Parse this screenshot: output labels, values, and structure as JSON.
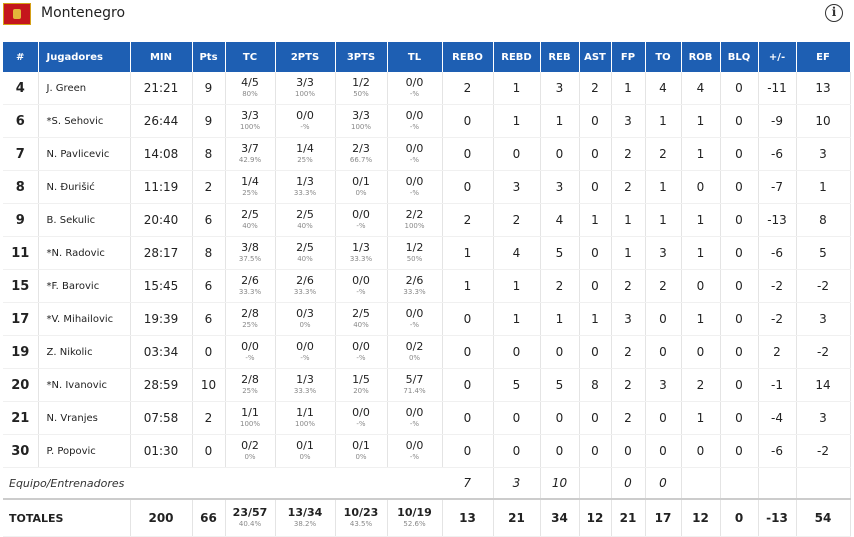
{
  "team": {
    "name": "Montenegro"
  },
  "colors": {
    "header_bg": "#1e5fb3",
    "flag_red": "#c4161c",
    "flag_gold": "#e3b73a"
  },
  "icons": {
    "info": "info-icon",
    "flag": "montenegro-flag-icon"
  },
  "columns": [
    "#",
    "Jugadores",
    "MIN",
    "Pts",
    "TC",
    "2PTS",
    "3PTS",
    "TL",
    "REBO",
    "REBD",
    "REB",
    "AST",
    "FP",
    "TO",
    "ROB",
    "BLQ",
    "+/-",
    "EF"
  ],
  "players": [
    {
      "num": "4",
      "name": "J. Green",
      "min": "21:21",
      "pts": "9",
      "tc": "4/5",
      "tc_pct": "80%",
      "p2": "3/3",
      "p2_pct": "100%",
      "p3": "1/2",
      "p3_pct": "50%",
      "tl": "0/0",
      "tl_pct": "-%",
      "rebo": "2",
      "rebd": "1",
      "reb": "3",
      "ast": "2",
      "fp": "1",
      "to": "4",
      "rob": "4",
      "blq": "0",
      "pm": "-11",
      "ef": "13"
    },
    {
      "num": "6",
      "name": "*S. Sehovic",
      "min": "26:44",
      "pts": "9",
      "tc": "3/3",
      "tc_pct": "100%",
      "p2": "0/0",
      "p2_pct": "-%",
      "p3": "3/3",
      "p3_pct": "100%",
      "tl": "0/0",
      "tl_pct": "-%",
      "rebo": "0",
      "rebd": "1",
      "reb": "1",
      "ast": "0",
      "fp": "3",
      "to": "1",
      "rob": "1",
      "blq": "0",
      "pm": "-9",
      "ef": "10"
    },
    {
      "num": "7",
      "name": "N. Pavlicevic",
      "min": "14:08",
      "pts": "8",
      "tc": "3/7",
      "tc_pct": "42.9%",
      "p2": "1/4",
      "p2_pct": "25%",
      "p3": "2/3",
      "p3_pct": "66.7%",
      "tl": "0/0",
      "tl_pct": "-%",
      "rebo": "0",
      "rebd": "0",
      "reb": "0",
      "ast": "0",
      "fp": "2",
      "to": "2",
      "rob": "1",
      "blq": "0",
      "pm": "-6",
      "ef": "3"
    },
    {
      "num": "8",
      "name": "N. Đurišić",
      "min": "11:19",
      "pts": "2",
      "tc": "1/4",
      "tc_pct": "25%",
      "p2": "1/3",
      "p2_pct": "33.3%",
      "p3": "0/1",
      "p3_pct": "0%",
      "tl": "0/0",
      "tl_pct": "-%",
      "rebo": "0",
      "rebd": "3",
      "reb": "3",
      "ast": "0",
      "fp": "2",
      "to": "1",
      "rob": "0",
      "blq": "0",
      "pm": "-7",
      "ef": "1"
    },
    {
      "num": "9",
      "name": "B. Sekulic",
      "min": "20:40",
      "pts": "6",
      "tc": "2/5",
      "tc_pct": "40%",
      "p2": "2/5",
      "p2_pct": "40%",
      "p3": "0/0",
      "p3_pct": "-%",
      "tl": "2/2",
      "tl_pct": "100%",
      "rebo": "2",
      "rebd": "2",
      "reb": "4",
      "ast": "1",
      "fp": "1",
      "to": "1",
      "rob": "1",
      "blq": "0",
      "pm": "-13",
      "ef": "8"
    },
    {
      "num": "11",
      "name": "*N. Radovic",
      "min": "28:17",
      "pts": "8",
      "tc": "3/8",
      "tc_pct": "37.5%",
      "p2": "2/5",
      "p2_pct": "40%",
      "p3": "1/3",
      "p3_pct": "33.3%",
      "tl": "1/2",
      "tl_pct": "50%",
      "rebo": "1",
      "rebd": "4",
      "reb": "5",
      "ast": "0",
      "fp": "1",
      "to": "3",
      "rob": "1",
      "blq": "0",
      "pm": "-6",
      "ef": "5"
    },
    {
      "num": "15",
      "name": "*F. Barovic",
      "min": "15:45",
      "pts": "6",
      "tc": "2/6",
      "tc_pct": "33.3%",
      "p2": "2/6",
      "p2_pct": "33.3%",
      "p3": "0/0",
      "p3_pct": "-%",
      "tl": "2/6",
      "tl_pct": "33.3%",
      "rebo": "1",
      "rebd": "1",
      "reb": "2",
      "ast": "0",
      "fp": "2",
      "to": "2",
      "rob": "0",
      "blq": "0",
      "pm": "-2",
      "ef": "-2"
    },
    {
      "num": "17",
      "name": "*V. Mihailovic",
      "min": "19:39",
      "pts": "6",
      "tc": "2/8",
      "tc_pct": "25%",
      "p2": "0/3",
      "p2_pct": "0%",
      "p3": "2/5",
      "p3_pct": "40%",
      "tl": "0/0",
      "tl_pct": "-%",
      "rebo": "0",
      "rebd": "1",
      "reb": "1",
      "ast": "1",
      "fp": "3",
      "to": "0",
      "rob": "1",
      "blq": "0",
      "pm": "-2",
      "ef": "3"
    },
    {
      "num": "19",
      "name": "Z. Nikolic",
      "min": "03:34",
      "pts": "0",
      "tc": "0/0",
      "tc_pct": "-%",
      "p2": "0/0",
      "p2_pct": "-%",
      "p3": "0/0",
      "p3_pct": "-%",
      "tl": "0/2",
      "tl_pct": "0%",
      "rebo": "0",
      "rebd": "0",
      "reb": "0",
      "ast": "0",
      "fp": "2",
      "to": "0",
      "rob": "0",
      "blq": "0",
      "pm": "2",
      "ef": "-2"
    },
    {
      "num": "20",
      "name": "*N. Ivanovic",
      "min": "28:59",
      "pts": "10",
      "tc": "2/8",
      "tc_pct": "25%",
      "p2": "1/3",
      "p2_pct": "33.3%",
      "p3": "1/5",
      "p3_pct": "20%",
      "tl": "5/7",
      "tl_pct": "71.4%",
      "rebo": "0",
      "rebd": "5",
      "reb": "5",
      "ast": "8",
      "fp": "2",
      "to": "3",
      "rob": "2",
      "blq": "0",
      "pm": "-1",
      "ef": "14"
    },
    {
      "num": "21",
      "name": "N. Vranjes",
      "min": "07:58",
      "pts": "2",
      "tc": "1/1",
      "tc_pct": "100%",
      "p2": "1/1",
      "p2_pct": "100%",
      "p3": "0/0",
      "p3_pct": "-%",
      "tl": "0/0",
      "tl_pct": "-%",
      "rebo": "0",
      "rebd": "0",
      "reb": "0",
      "ast": "0",
      "fp": "2",
      "to": "0",
      "rob": "1",
      "blq": "0",
      "pm": "-4",
      "ef": "3"
    },
    {
      "num": "30",
      "name": "P. Popovic",
      "min": "01:30",
      "pts": "0",
      "tc": "0/2",
      "tc_pct": "0%",
      "p2": "0/1",
      "p2_pct": "0%",
      "p3": "0/1",
      "p3_pct": "0%",
      "tl": "0/0",
      "tl_pct": "-%",
      "rebo": "0",
      "rebd": "0",
      "reb": "0",
      "ast": "0",
      "fp": "0",
      "to": "0",
      "rob": "0",
      "blq": "0",
      "pm": "-6",
      "ef": "-2"
    }
  ],
  "team_row": {
    "label": "Equipo/Entrenadores",
    "rebo": "7",
    "rebd": "3",
    "reb": "10",
    "fp": "0",
    "to": "0"
  },
  "totals": {
    "label": "TOTALES",
    "min": "200",
    "pts": "66",
    "tc": "23/57",
    "tc_pct": "40.4%",
    "p2": "13/34",
    "p2_pct": "38.2%",
    "p3": "10/23",
    "p3_pct": "43.5%",
    "tl": "10/19",
    "tl_pct": "52.6%",
    "rebo": "13",
    "rebd": "21",
    "reb": "34",
    "ast": "12",
    "fp": "21",
    "to": "17",
    "rob": "12",
    "blq": "0",
    "pm": "-13",
    "ef": "54"
  }
}
